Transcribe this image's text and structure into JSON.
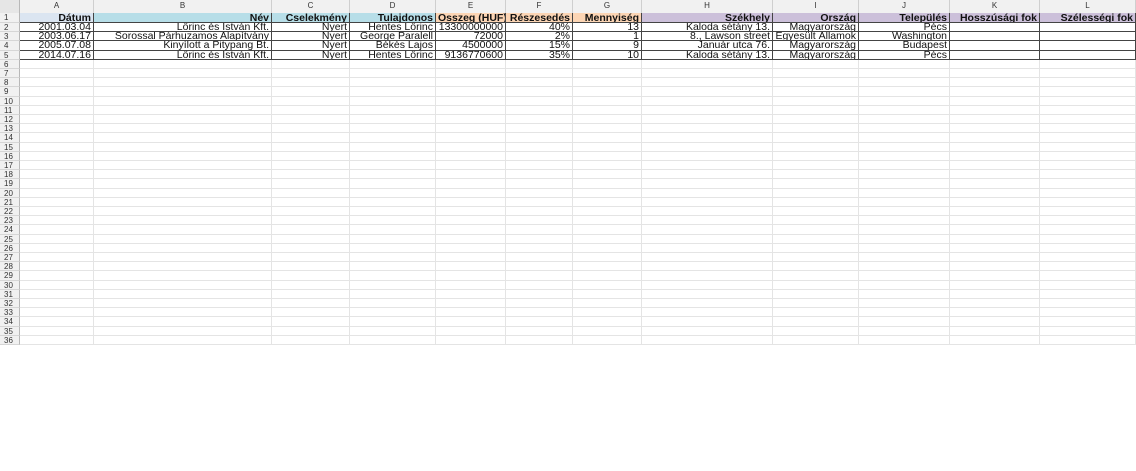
{
  "sheet": {
    "columns": [
      "A",
      "B",
      "C",
      "D",
      "E",
      "F",
      "G",
      "H",
      "I",
      "J",
      "K",
      "L"
    ],
    "row_count": 36,
    "header_labels": [
      "Dátum",
      "Név",
      "Cselekmény",
      "Tulajdonos",
      "Összeg (HUF)",
      "Részesedés",
      "Mennyiség",
      "Székhely",
      "Ország",
      "Település",
      "Hosszúsági fok",
      "Szélességi fok"
    ],
    "header_colors": [
      "#dbe5f1",
      "#b7dee8",
      "#b7dee8",
      "#b7dee8",
      "#fcd5b4",
      "#fcd5b4",
      "#fcd5b4",
      "#ccc0da",
      "#ccc0da",
      "#ccc0da",
      "#ccc0da",
      "#ccc0da"
    ],
    "rows": [
      [
        "2001.03.04",
        "Lőrinc és István Kft.",
        "Nyert",
        "Hentes Lőrinc",
        "13300000000",
        "40%",
        "13",
        "Kaloda sétány 13.",
        "Magyarország",
        "Pécs",
        "",
        ""
      ],
      [
        "2003.06.17",
        "Sorossal Párhuzamos Alapítvány",
        "Nyert",
        "George Paralell",
        "72000",
        "2%",
        "1",
        "8., Lawson street",
        "Egyesült Államok",
        "Washington",
        "",
        ""
      ],
      [
        "2005.07.08",
        "Kinyílott a Pitypang Bt.",
        "Nyert",
        "Békés Lajos",
        "4500000",
        "15%",
        "9",
        "Január utca 76.",
        "Magyarország",
        "Budapest",
        "",
        ""
      ],
      [
        "2014.07.16",
        "Lőrinc és István Kft.",
        "Nyert",
        "Hentes Lőrinc",
        "9136770600",
        "35%",
        "10",
        "Kaloda sétány 13.",
        "Magyarország",
        "Pécs",
        "",
        ""
      ]
    ]
  }
}
